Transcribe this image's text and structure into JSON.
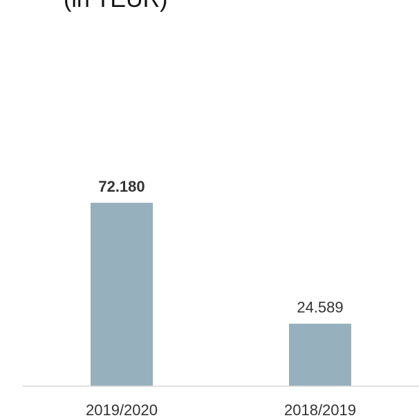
{
  "chart_data": {
    "type": "bar",
    "title": "(in TEUR)",
    "categories": [
      "2019/2020",
      "2018/2019"
    ],
    "values": [
      72.18,
      24.589
    ],
    "value_labels": [
      "72.180",
      "24.589"
    ],
    "bold_value_index": 0,
    "colors": {
      "bar": "#97b0bd",
      "axis": "#d9d9d9",
      "text": "#333333"
    },
    "grid": false,
    "legend": "none"
  }
}
